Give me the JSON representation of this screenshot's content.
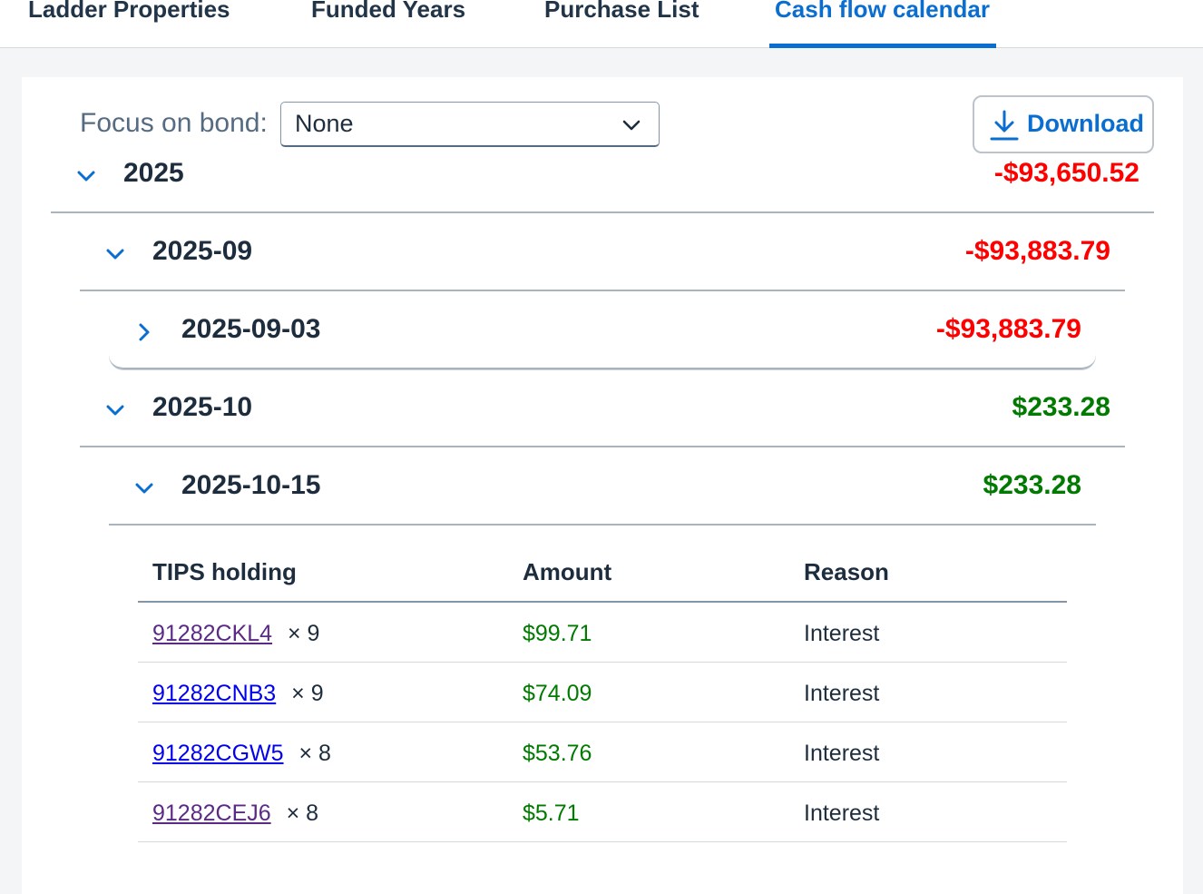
{
  "tabs": [
    {
      "label": "Ladder Properties",
      "active": false
    },
    {
      "label": "Funded Years",
      "active": false
    },
    {
      "label": "Purchase List",
      "active": false
    },
    {
      "label": "Cash flow calendar",
      "active": true
    }
  ],
  "focus": {
    "label": "Focus on bond:",
    "selected": "None"
  },
  "download": {
    "label": "Download"
  },
  "tree": {
    "year": {
      "label": "2025",
      "amount": "-$93,650.52",
      "expanded": true
    },
    "month_sep": {
      "label": "2025-09",
      "amount": "-$93,883.79",
      "expanded": true
    },
    "day_sep03": {
      "label": "2025-09-03",
      "amount": "-$93,883.79",
      "expanded": false
    },
    "month_oct": {
      "label": "2025-10",
      "amount": "$233.28",
      "expanded": true
    },
    "day_oct15": {
      "label": "2025-10-15",
      "amount": "$233.28",
      "expanded": true
    }
  },
  "table": {
    "headers": {
      "holding": "TIPS holding",
      "amount": "Amount",
      "reason": "Reason"
    },
    "rows": [
      {
        "cusip": "91282CKL4",
        "qty": "× 9",
        "amount": "$99.71",
        "reason": "Interest"
      },
      {
        "cusip": "91282CNB3",
        "qty": "× 9",
        "amount": "$74.09",
        "reason": "Interest"
      },
      {
        "cusip": "91282CGW5",
        "qty": "× 8",
        "amount": "$53.76",
        "reason": "Interest"
      },
      {
        "cusip": "91282CEJ6",
        "qty": "× 8",
        "amount": "$5.71",
        "reason": "Interest"
      }
    ]
  },
  "colors": {
    "accent": "#0a6ed1",
    "negative": "#ff0000",
    "positive": "#007a00",
    "visited_link": "#5b2a86",
    "link": "#0000ee"
  }
}
